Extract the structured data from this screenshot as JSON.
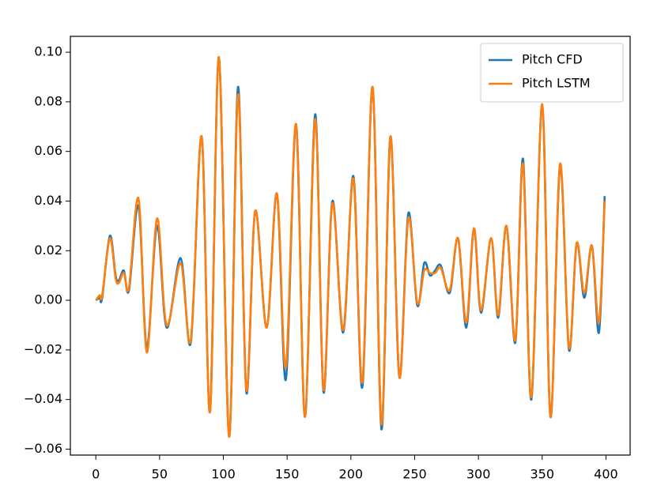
{
  "chart_data": {
    "type": "line",
    "x": [
      0,
      3,
      5,
      11,
      15.5,
      18,
      22,
      26,
      33.5,
      40,
      48,
      55.5,
      66.5,
      74.5,
      83,
      89.5,
      96.5,
      104.5,
      111.5,
      118,
      125,
      134,
      142,
      149,
      157,
      164,
      172,
      178.5,
      185.5,
      194,
      202,
      209,
      217,
      224,
      231,
      238,
      245,
      252,
      257.5,
      262,
      266,
      270.5,
      277.5,
      284,
      290.5,
      296.5,
      302,
      310,
      315.5,
      322,
      329,
      335,
      341.5,
      350,
      356.5,
      364,
      371,
      377,
      383,
      389,
      394.5,
      399
    ],
    "series": [
      {
        "name": "Pitch CFD",
        "color": "#1f77b4",
        "values": [
          0,
          0.001,
          0.001,
          0.026,
          0.01,
          0.008,
          0.012,
          0.004,
          0.038,
          -0.019,
          0.03,
          -0.011,
          0.017,
          -0.017,
          0.066,
          -0.045,
          0.098,
          -0.055,
          0.086,
          -0.037,
          0.036,
          -0.011,
          0.043,
          -0.032,
          0.071,
          -0.047,
          0.075,
          -0.037,
          0.04,
          -0.013,
          0.05,
          -0.035,
          0.086,
          -0.052,
          0.066,
          -0.031,
          0.035,
          -0.002,
          0.015,
          0.01,
          0.012,
          0.014,
          0.003,
          0.025,
          -0.011,
          0.029,
          -0.005,
          0.025,
          -0.007,
          0.03,
          -0.017,
          0.057,
          -0.04,
          0.079,
          -0.047,
          0.054,
          -0.02,
          0.023,
          0.001,
          0.022,
          -0.013,
          0.042
        ]
      },
      {
        "name": "Pitch LSTM",
        "color": "#ff7f0e",
        "values": [
          0,
          0.002,
          0.002,
          0.025,
          0.009,
          0.007,
          0.011,
          0.005,
          0.041,
          -0.021,
          0.033,
          -0.01,
          0.015,
          -0.016,
          0.066,
          -0.045,
          0.098,
          -0.055,
          0.083,
          -0.036,
          0.036,
          -0.011,
          0.043,
          -0.027,
          0.071,
          -0.047,
          0.073,
          -0.036,
          0.039,
          -0.012,
          0.049,
          -0.033,
          0.086,
          -0.05,
          0.066,
          -0.031,
          0.033,
          -0.001,
          0.012,
          0.011,
          0.011,
          0.013,
          0.004,
          0.025,
          -0.009,
          0.029,
          -0.004,
          0.025,
          -0.006,
          0.03,
          -0.016,
          0.055,
          -0.039,
          0.079,
          -0.047,
          0.055,
          -0.019,
          0.023,
          0.003,
          0.022,
          -0.009,
          0.04
        ]
      }
    ],
    "xlim": [
      -19.95,
      418.95
    ],
    "ylim": [
      -0.0624,
      0.1064
    ],
    "xticks": [
      0,
      50,
      100,
      150,
      200,
      250,
      300,
      350,
      400
    ],
    "yticks": [
      {
        "value": -0.06,
        "label": "−0.06"
      },
      {
        "value": -0.04,
        "label": "−0.04"
      },
      {
        "value": -0.02,
        "label": "−0.02"
      },
      {
        "value": 0,
        "label": "0.00"
      },
      {
        "value": 0.02,
        "label": "0.02"
      },
      {
        "value": 0.04,
        "label": "0.04"
      },
      {
        "value": 0.06,
        "label": "0.06"
      },
      {
        "value": 0.08,
        "label": "0.08"
      },
      {
        "value": 0.1,
        "label": "0.10"
      }
    ],
    "legend": "upper right",
    "grid": false
  }
}
